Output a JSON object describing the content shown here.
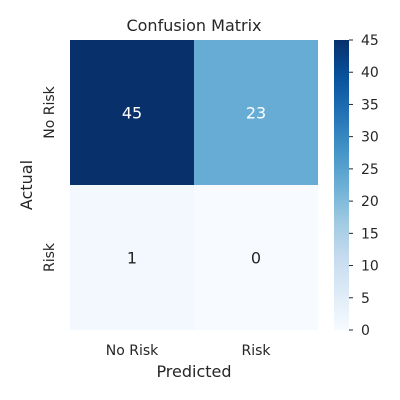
{
  "chart_data": {
    "type": "heatmap",
    "title": "Confusion Matrix",
    "xlabel": "Predicted",
    "ylabel": "Actual",
    "x_categories": [
      "No Risk",
      "Risk"
    ],
    "y_categories": [
      "No Risk",
      "Risk"
    ],
    "values": [
      [
        45,
        23
      ],
      [
        1,
        0
      ]
    ],
    "colormap": "Blues",
    "colorbar": {
      "min": 0,
      "max": 45,
      "ticks": [
        0,
        5,
        10,
        15,
        20,
        25,
        30,
        35,
        40,
        45
      ]
    },
    "annotation_colors": {
      "dark_cell": "#ffffff",
      "light_cell": "#262626"
    },
    "grid": false
  }
}
